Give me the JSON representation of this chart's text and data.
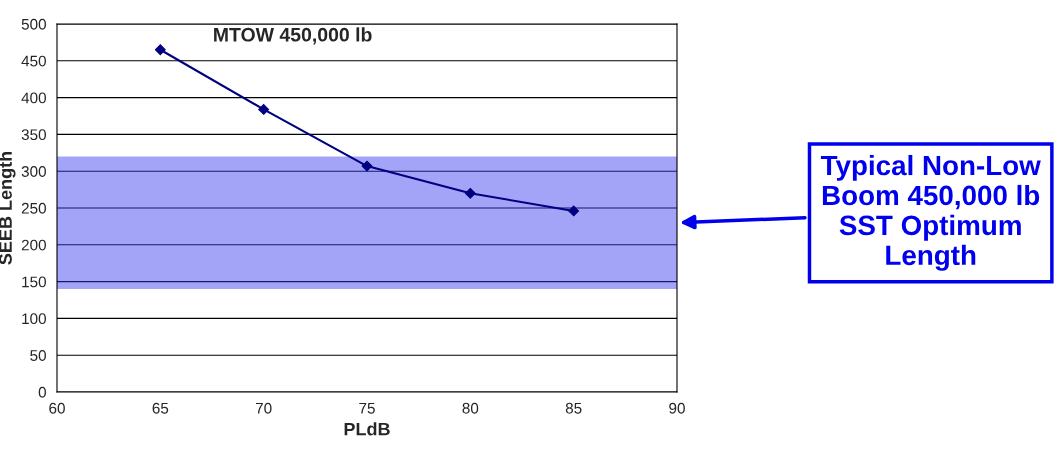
{
  "chart_data": {
    "type": "line",
    "title": "MTOW 450,000 lb",
    "xlabel": "PLdB",
    "ylabel": "SEEB Length",
    "x": [
      65,
      70,
      75,
      80,
      85
    ],
    "series": [
      {
        "color": "#000080",
        "values": [
          465,
          384,
          307,
          270,
          246
        ]
      }
    ],
    "xlim": [
      60,
      90
    ],
    "xticks": [
      60,
      65,
      70,
      75,
      80,
      85,
      90
    ],
    "ylim": [
      0,
      500
    ],
    "yticks": [
      0,
      50,
      100,
      150,
      200,
      250,
      300,
      350,
      400,
      450,
      500
    ],
    "grid": "y",
    "marker": "diamond",
    "line_style": "solid",
    "legend": false,
    "bands": [
      {
        "axis": "y",
        "from": 140,
        "to": 320,
        "label": "Typical Non-Low Boom 450,000 lb SST Optimum Length",
        "color": "#3333ee"
      }
    ]
  }
}
